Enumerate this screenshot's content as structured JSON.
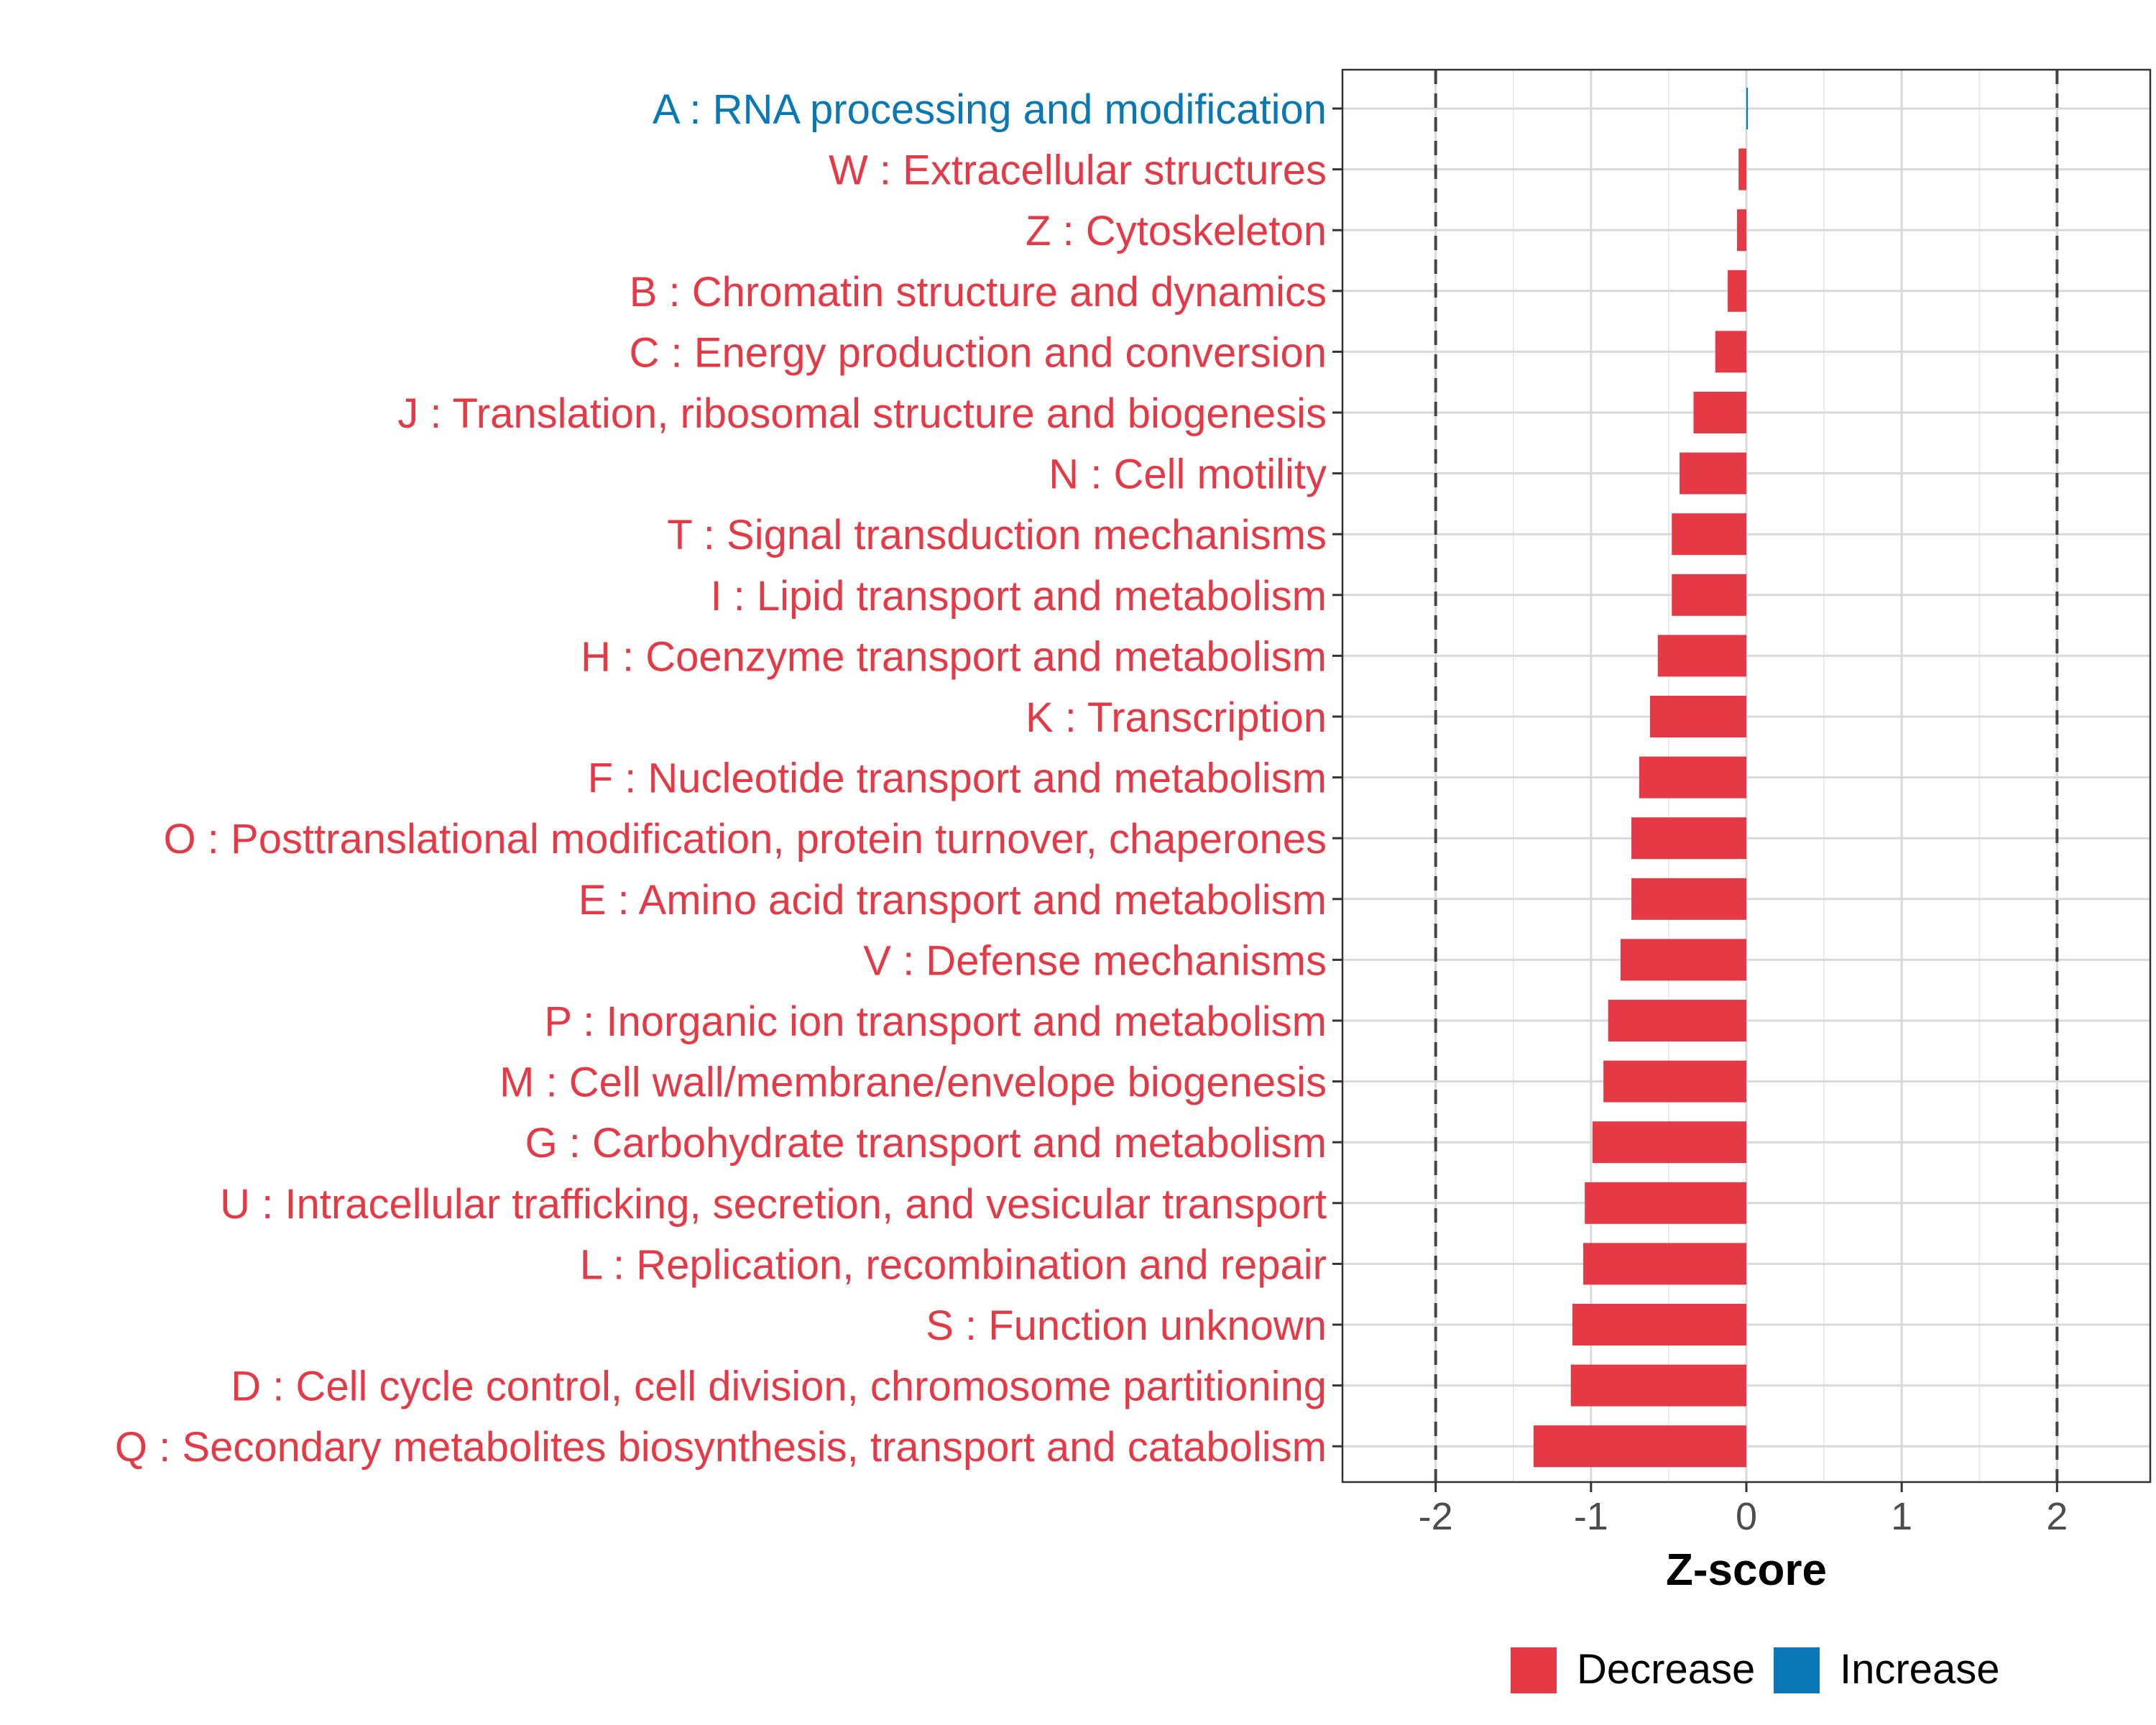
{
  "chart_data": {
    "type": "bar",
    "orientation": "horizontal",
    "xlabel": "Z-score",
    "xlim": [
      -2.6,
      2.6
    ],
    "xticks": [
      -2,
      -1,
      0,
      1,
      2
    ],
    "xtick_labels": [
      "-2",
      "-1",
      "0",
      "1",
      "2"
    ],
    "reference_lines": [
      -2,
      2
    ],
    "grid": true,
    "legend_position": "bottom",
    "colors": {
      "Decrease": "#e63946",
      "Increase": "#0a78b4"
    },
    "legend": [
      {
        "label": "Decrease",
        "color": "#e63946"
      },
      {
        "label": "Increase",
        "color": "#0a78b4"
      }
    ],
    "categories": [
      {
        "label": "A : RNA processing and modification",
        "value": 0.01,
        "direction": "Increase"
      },
      {
        "label": "W : Extracellular structures",
        "value": -0.05,
        "direction": "Decrease"
      },
      {
        "label": "Z : Cytoskeleton",
        "value": -0.06,
        "direction": "Decrease"
      },
      {
        "label": "B : Chromatin structure and dynamics",
        "value": -0.12,
        "direction": "Decrease"
      },
      {
        "label": "C : Energy production and conversion",
        "value": -0.2,
        "direction": "Decrease"
      },
      {
        "label": "J : Translation, ribosomal structure and biogenesis",
        "value": -0.34,
        "direction": "Decrease"
      },
      {
        "label": "N : Cell motility",
        "value": -0.43,
        "direction": "Decrease"
      },
      {
        "label": "T : Signal transduction mechanisms",
        "value": -0.48,
        "direction": "Decrease"
      },
      {
        "label": "I : Lipid transport and metabolism",
        "value": -0.48,
        "direction": "Decrease"
      },
      {
        "label": "H : Coenzyme transport and metabolism",
        "value": -0.57,
        "direction": "Decrease"
      },
      {
        "label": "K : Transcription",
        "value": -0.62,
        "direction": "Decrease"
      },
      {
        "label": "F : Nucleotide transport and metabolism",
        "value": -0.69,
        "direction": "Decrease"
      },
      {
        "label": "O : Posttranslational modification, protein turnover, chaperones",
        "value": -0.74,
        "direction": "Decrease"
      },
      {
        "label": "E : Amino acid transport and metabolism",
        "value": -0.74,
        "direction": "Decrease"
      },
      {
        "label": "V : Defense mechanisms",
        "value": -0.81,
        "direction": "Decrease"
      },
      {
        "label": "P : Inorganic ion transport and metabolism",
        "value": -0.89,
        "direction": "Decrease"
      },
      {
        "label": "M : Cell wall/membrane/envelope biogenesis",
        "value": -0.92,
        "direction": "Decrease"
      },
      {
        "label": "G : Carbohydrate transport and metabolism",
        "value": -0.99,
        "direction": "Decrease"
      },
      {
        "label": "U : Intracellular trafficking, secretion, and vesicular transport",
        "value": -1.04,
        "direction": "Decrease"
      },
      {
        "label": "L : Replication, recombination and repair",
        "value": -1.05,
        "direction": "Decrease"
      },
      {
        "label": "S : Function unknown",
        "value": -1.12,
        "direction": "Decrease"
      },
      {
        "label": "D : Cell cycle control, cell division, chromosome partitioning",
        "value": -1.13,
        "direction": "Decrease"
      },
      {
        "label": "Q : Secondary metabolites biosynthesis, transport and catabolism",
        "value": -1.37,
        "direction": "Decrease"
      }
    ]
  }
}
